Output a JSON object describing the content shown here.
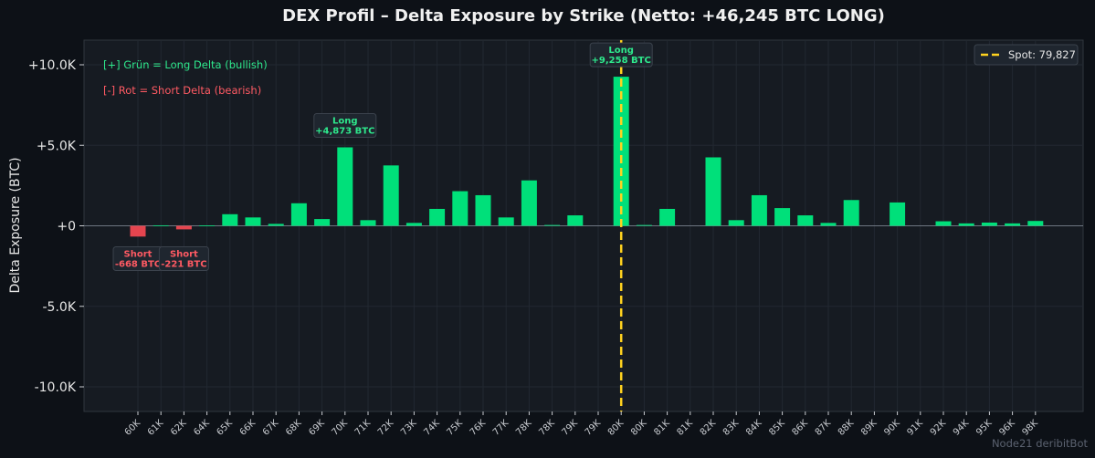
{
  "chart_data": {
    "type": "bar",
    "title": "DEX Profil – Delta Exposure by Strike (Netto: +46,245 BTC LONG)",
    "ylabel": "Delta Exposure (BTC)",
    "xlabel": "",
    "ylim": [
      -11600,
      11600
    ],
    "yticks": [
      -10000,
      -5000,
      0,
      5000,
      10000
    ],
    "ytick_labels": [
      "-10.0K",
      "-5.0K",
      "+0",
      "+5.0K",
      "+10.0K"
    ],
    "grid": true,
    "categories": [
      "60K",
      "61K",
      "62K",
      "64K",
      "65K",
      "66K",
      "67K",
      "68K",
      "69K",
      "70K",
      "71K",
      "72K",
      "73K",
      "74K",
      "75K",
      "76K",
      "77K",
      "78K",
      "78K",
      "79K",
      "79K",
      "80K",
      "80K",
      "81K",
      "81K",
      "82K",
      "83K",
      "84K",
      "85K",
      "86K",
      "87K",
      "88K",
      "89K",
      "90K",
      "91K",
      "92K",
      "94K",
      "95K",
      "96K",
      "98K"
    ],
    "values": [
      -668,
      30,
      -221,
      20,
      720,
      520,
      120,
      1400,
      420,
      4873,
      350,
      3750,
      180,
      1050,
      2150,
      1900,
      520,
      2820,
      50,
      650,
      0,
      9258,
      50,
      1050,
      0,
      4250,
      350,
      1900,
      1100,
      650,
      180,
      1600,
      0,
      1450,
      0,
      280,
      150,
      200,
      150,
      300
    ],
    "positive_color": "#00e07a",
    "negative_color": "#e5454f",
    "spot": {
      "value_index": 21,
      "label": "Spot: 79,827",
      "color": "#ffd21f"
    },
    "legend_position": "top-right",
    "notes": [
      {
        "text": "[+] Grün = Long Delta (bullish)",
        "color": "#2ee88c"
      },
      {
        "text": "[-] Rot = Short Delta (bearish)",
        "color": "#ff5a63"
      }
    ],
    "annotations": [
      {
        "index": 0,
        "line1": "Short",
        "line2": "-668 BTC",
        "kind": "short"
      },
      {
        "index": 2,
        "line1": "Short",
        "line2": "-221 BTC",
        "kind": "short"
      },
      {
        "index": 9,
        "line1": "Long",
        "line2": "+4,873 BTC",
        "kind": "long"
      },
      {
        "index": 21,
        "line1": "Long",
        "line2": "+9,258 BTC",
        "kind": "long"
      }
    ]
  },
  "watermark": "Node21 deribitBot"
}
